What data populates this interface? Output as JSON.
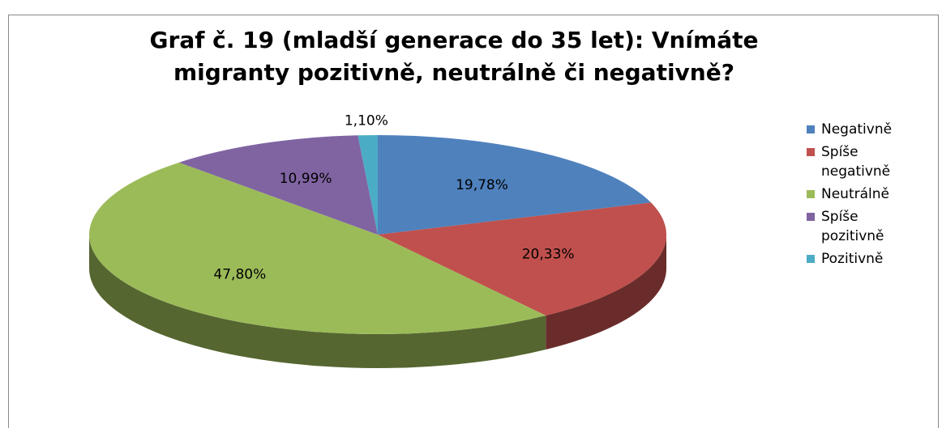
{
  "chart_data": {
    "type": "pie",
    "title": "Graf č. 19 (mladší generace do 35 let): Vnímáte migranty pozitivně, neutrálně či negativně?",
    "categories": [
      "Negativně",
      "Spíše negativně",
      "Neutrálně",
      "Spíše pozitivně",
      "Pozitivně"
    ],
    "values": [
      19.78,
      20.33,
      47.8,
      10.99,
      1.1
    ],
    "value_labels": [
      "19,78%",
      "20,33%",
      "47,80%",
      "10,99%",
      "1,10%"
    ],
    "colors": [
      "#4f81bd",
      "#c0504d",
      "#9bbb59",
      "#8064a2",
      "#4bacc6"
    ],
    "legend": "right"
  }
}
